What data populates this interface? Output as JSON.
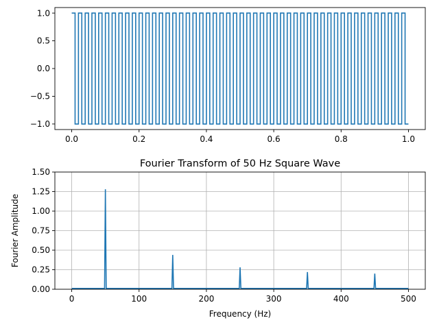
{
  "chart_data": [
    {
      "type": "line",
      "title": "",
      "xlabel": "",
      "ylabel": "",
      "x_range": [
        0.0,
        1.0
      ],
      "xlim": [
        -0.05,
        1.05
      ],
      "ylim": [
        -1.1,
        1.1
      ],
      "xticks": [
        0.0,
        0.2,
        0.4,
        0.6,
        0.8,
        1.0
      ],
      "xtick_labels": [
        "0.0",
        "0.2",
        "0.4",
        "0.6",
        "0.8",
        "1.0"
      ],
      "yticks": [
        -1.0,
        -0.5,
        0.0,
        0.5,
        1.0
      ],
      "ytick_labels": [
        "−1.0",
        "−0.5",
        "0.0",
        "0.5",
        "1.0"
      ],
      "grid": false,
      "series": [
        {
          "kind": "square-wave",
          "frequency_hz": 50,
          "amplitude": 1.0,
          "color": "#1f77b4"
        }
      ]
    },
    {
      "type": "line",
      "title": "Fourier Transform of 50 Hz Square Wave",
      "xlabel": "Frequency (Hz)",
      "ylabel": "Fourier Amplitude",
      "xlim": [
        -25,
        525
      ],
      "ylim": [
        0.0,
        1.5
      ],
      "xticks": [
        0,
        100,
        200,
        300,
        400,
        500
      ],
      "xtick_labels": [
        "0",
        "100",
        "200",
        "300",
        "400",
        "500"
      ],
      "yticks": [
        0.0,
        0.25,
        0.5,
        0.75,
        1.0,
        1.25,
        1.5
      ],
      "ytick_labels": [
        "0.00",
        "0.25",
        "0.50",
        "0.75",
        "1.00",
        "1.25",
        "1.50"
      ],
      "grid": true,
      "x_range": [
        0,
        500
      ],
      "series": [
        {
          "color": "#1f77b4",
          "baseline": 0.01,
          "peaks": [
            {
              "x": 50,
              "y": 1.28
            },
            {
              "x": 150,
              "y": 0.44
            },
            {
              "x": 250,
              "y": 0.28
            },
            {
              "x": 350,
              "y": 0.22
            },
            {
              "x": 450,
              "y": 0.2
            }
          ]
        }
      ]
    }
  ]
}
